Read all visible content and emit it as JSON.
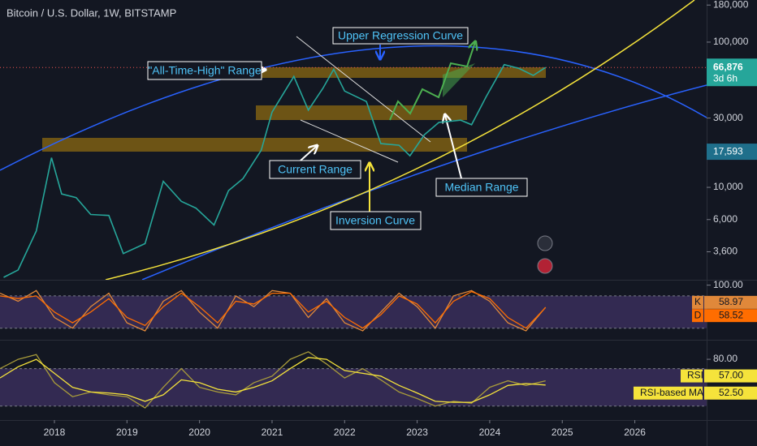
{
  "chart_data": [
    {
      "type": "line",
      "title": "Bitcoin / U.S. Dollar, 1W, BITSTAMP",
      "log_scale": true,
      "color": "#26a69a",
      "x": [
        2017.3,
        2017.5,
        2017.75,
        2017.96,
        2018.1,
        2018.3,
        2018.5,
        2018.75,
        2018.95,
        2019.25,
        2019.5,
        2019.75,
        2019.95,
        2020.2,
        2020.4,
        2020.6,
        2020.85,
        2021.0,
        2021.3,
        2021.5,
        2021.7,
        2021.85,
        2022.0,
        2022.3,
        2022.5,
        2022.75,
        2022.9,
        2023.1,
        2023.3,
        2023.6,
        2023.75,
        2023.95,
        2024.2,
        2024.4,
        2024.6,
        2024.77
      ],
      "values": [
        2400,
        2700,
        5000,
        16000,
        9000,
        8500,
        6500,
        6400,
        3500,
        4100,
        11000,
        8000,
        7200,
        5500,
        9500,
        11500,
        18000,
        33000,
        58000,
        34000,
        48000,
        65000,
        46000,
        39000,
        20000,
        19500,
        16500,
        23000,
        28000,
        29000,
        27000,
        42000,
        70000,
        66000,
        59000,
        66876
      ],
      "value_label": "66,876",
      "countdown": "3d 6h",
      "price_labels": [
        {
          "value": 17593,
          "label": "17,593"
        }
      ],
      "xlim": [
        2017.25,
        2026.99
      ],
      "xticks": [
        2018,
        2019,
        2020,
        2021,
        2022,
        2023,
        2024,
        2025,
        2026
      ],
      "ylim": [
        2310,
        195000
      ],
      "yticks": [
        {
          "value": 180000,
          "label": "180,000"
        },
        {
          "value": 100000,
          "label": "100,000"
        },
        {
          "value": 30000,
          "label": "30,000"
        },
        {
          "value": 10000,
          "label": "10,000"
        },
        {
          "value": 6000,
          "label": "6,000"
        },
        {
          "value": 3600,
          "label": "3,600"
        }
      ],
      "annotations": [
        "Upper Regression Curve",
        "\"All-Time-High\" Range",
        "Current Range",
        "Median Range",
        "Inversion Curve"
      ]
    },
    {
      "type": "line",
      "xlim": [
        2017.25,
        2026.99
      ],
      "ylim": [
        0,
        110
      ],
      "yticks": [
        {
          "value": 100,
          "label": "100.00"
        }
      ],
      "band": [
        20,
        80
      ],
      "band_color": "#7e57c2",
      "x": [
        2017.25,
        2017.5,
        2017.75,
        2018,
        2018.25,
        2018.5,
        2018.75,
        2019,
        2019.25,
        2019.5,
        2019.75,
        2020,
        2020.25,
        2020.5,
        2020.75,
        2021,
        2021.25,
        2021.5,
        2021.75,
        2022,
        2022.25,
        2022.5,
        2022.75,
        2023,
        2023.25,
        2023.5,
        2023.75,
        2024,
        2024.25,
        2024.5,
        2024.77
      ],
      "series": [
        {
          "name": "K",
          "color": "#e0883a",
          "values": [
            85,
            70,
            90,
            40,
            20,
            60,
            85,
            30,
            15,
            70,
            90,
            50,
            20,
            80,
            60,
            90,
            85,
            40,
            75,
            30,
            15,
            50,
            85,
            60,
            20,
            80,
            90,
            70,
            30,
            15,
            58.97
          ]
        },
        {
          "name": "D",
          "color": "#ff6d00",
          "values": [
            80,
            75,
            80,
            50,
            30,
            50,
            75,
            40,
            25,
            60,
            85,
            60,
            30,
            70,
            65,
            85,
            85,
            50,
            70,
            40,
            20,
            45,
            80,
            65,
            30,
            70,
            88,
            75,
            40,
            20,
            58.52
          ]
        }
      ]
    },
    {
      "type": "line",
      "xlim": [
        2017.25,
        2026.99
      ],
      "ylim": [
        15,
        100
      ],
      "yticks": [
        {
          "value": 80,
          "label": "80.00"
        }
      ],
      "band": [
        30,
        70
      ],
      "band_color": "#7e57c2",
      "x": [
        2017.25,
        2017.5,
        2017.75,
        2018,
        2018.25,
        2018.5,
        2018.75,
        2019,
        2019.25,
        2019.5,
        2019.75,
        2020,
        2020.25,
        2020.5,
        2020.75,
        2021,
        2021.25,
        2021.5,
        2021.75,
        2022,
        2022.25,
        2022.5,
        2022.75,
        2023,
        2023.25,
        2023.5,
        2023.75,
        2024,
        2024.25,
        2024.5,
        2024.77
      ],
      "series": [
        {
          "name": "RSI",
          "color": "#a89b3a",
          "value_label": "57.00",
          "values": [
            70,
            80,
            85,
            55,
            40,
            45,
            42,
            40,
            28,
            50,
            70,
            50,
            45,
            42,
            55,
            62,
            80,
            88,
            75,
            60,
            70,
            58,
            45,
            38,
            30,
            35,
            33,
            50,
            57,
            52,
            57
          ]
        },
        {
          "name": "RSI-based MA",
          "color": "#f5e33b",
          "value_label": "52.50",
          "values": [
            60,
            72,
            80,
            65,
            50,
            45,
            44,
            42,
            35,
            42,
            58,
            55,
            48,
            45,
            50,
            57,
            70,
            82,
            80,
            68,
            65,
            62,
            52,
            44,
            35,
            34,
            34,
            42,
            52,
            54,
            52.5
          ]
        }
      ]
    }
  ]
}
